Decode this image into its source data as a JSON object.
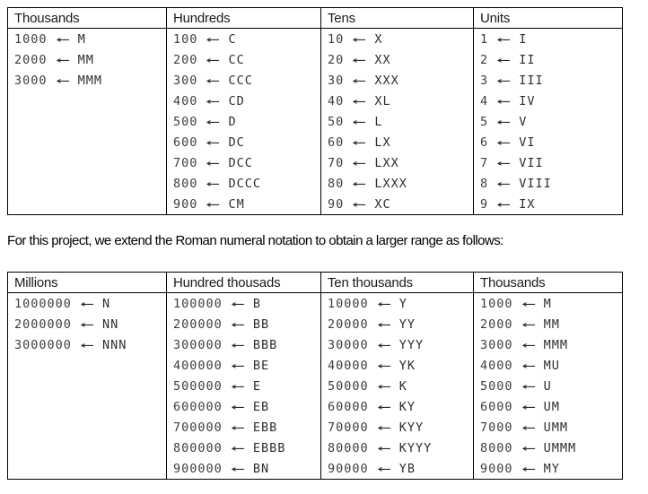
{
  "arrow": "←",
  "colors": {
    "background": "#ffffff",
    "table_border": "#000000",
    "header_text": "#1a1a1a",
    "data_text": "#3d3d42"
  },
  "paragraph": "For this project, we extend the Roman numeral notation to obtain a larger range as follows:",
  "table1": {
    "headers": [
      "Thousands",
      "Hundreds",
      "Tens",
      "Units"
    ],
    "rows": [
      [
        [
          "1000",
          "M"
        ],
        [
          "100",
          "C"
        ],
        [
          "10",
          "X"
        ],
        [
          "1",
          "I"
        ]
      ],
      [
        [
          "2000",
          "MM"
        ],
        [
          "200",
          "CC"
        ],
        [
          "20",
          "XX"
        ],
        [
          "2",
          "II"
        ]
      ],
      [
        [
          "3000",
          "MMM"
        ],
        [
          "300",
          "CCC"
        ],
        [
          "30",
          "XXX"
        ],
        [
          "3",
          "III"
        ]
      ],
      [
        null,
        [
          "400",
          "CD"
        ],
        [
          "40",
          "XL"
        ],
        [
          "4",
          "IV"
        ]
      ],
      [
        null,
        [
          "500",
          "D"
        ],
        [
          "50",
          "L"
        ],
        [
          "5",
          "V"
        ]
      ],
      [
        null,
        [
          "600",
          "DC"
        ],
        [
          "60",
          "LX"
        ],
        [
          "6",
          "VI"
        ]
      ],
      [
        null,
        [
          "700",
          "DCC"
        ],
        [
          "70",
          "LXX"
        ],
        [
          "7",
          "VII"
        ]
      ],
      [
        null,
        [
          "800",
          "DCCC"
        ],
        [
          "80",
          "LXXX"
        ],
        [
          "8",
          "VIII"
        ]
      ],
      [
        null,
        [
          "900",
          "CM"
        ],
        [
          "90",
          "XC"
        ],
        [
          "9",
          "IX"
        ]
      ]
    ]
  },
  "table2": {
    "headers": [
      "Millions",
      "Hundred thousads",
      "Ten thousands",
      "Thousands"
    ],
    "rows": [
      [
        [
          "1000000",
          "N"
        ],
        [
          "100000",
          "B"
        ],
        [
          "10000",
          "Y"
        ],
        [
          "1000",
          "M"
        ]
      ],
      [
        [
          "2000000",
          "NN"
        ],
        [
          "200000",
          "BB"
        ],
        [
          "20000",
          "YY"
        ],
        [
          "2000",
          "MM"
        ]
      ],
      [
        [
          "3000000",
          "NNN"
        ],
        [
          "300000",
          "BBB"
        ],
        [
          "30000",
          "YYY"
        ],
        [
          "3000",
          "MMM"
        ]
      ],
      [
        null,
        [
          "400000",
          "BE"
        ],
        [
          "40000",
          "YK"
        ],
        [
          "4000",
          "MU"
        ]
      ],
      [
        null,
        [
          "500000",
          "E"
        ],
        [
          "50000",
          "K"
        ],
        [
          "5000",
          "U"
        ]
      ],
      [
        null,
        [
          "600000",
          "EB"
        ],
        [
          "60000",
          "KY"
        ],
        [
          "6000",
          "UM"
        ]
      ],
      [
        null,
        [
          "700000",
          "EBB"
        ],
        [
          "70000",
          "KYY"
        ],
        [
          "7000",
          "UMM"
        ]
      ],
      [
        null,
        [
          "800000",
          "EBBB"
        ],
        [
          "80000",
          "KYYY"
        ],
        [
          "8000",
          "UMMM"
        ]
      ],
      [
        null,
        [
          "900000",
          "BN"
        ],
        [
          "90000",
          "YB"
        ],
        [
          "9000",
          "MY"
        ]
      ]
    ]
  }
}
